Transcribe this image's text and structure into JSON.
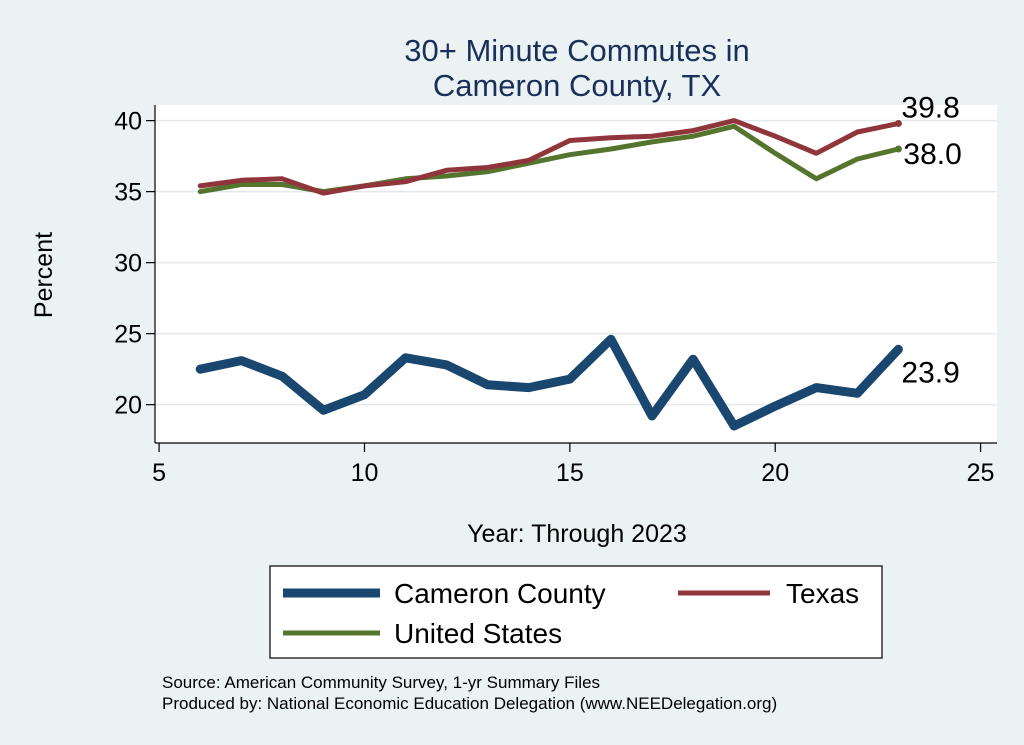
{
  "chart_data": {
    "type": "line",
    "title_lines": [
      "30+ Minute Commutes in",
      "Cameron County, TX"
    ],
    "xlabel": "Year: Through 2023",
    "ylabel": "Percent",
    "xlim": [
      4.9,
      25.4
    ],
    "ylim": [
      17.3,
      41.1
    ],
    "xticks": [
      5,
      10,
      15,
      20,
      25
    ],
    "yticks": [
      20,
      25,
      30,
      35,
      40
    ],
    "grid": true,
    "x": [
      6,
      7,
      8,
      9,
      10,
      11,
      12,
      13,
      14,
      15,
      16,
      17,
      18,
      19,
      20,
      21,
      22,
      23
    ],
    "series": [
      {
        "name": "Cameron County",
        "color": "#1a476f",
        "values": [
          22.5,
          23.1,
          22.0,
          19.6,
          20.7,
          23.3,
          22.8,
          21.4,
          21.2,
          21.8,
          24.6,
          19.2,
          23.2,
          18.5,
          19.9,
          21.2,
          20.8,
          23.9
        ],
        "end_label": "23.9"
      },
      {
        "name": "Texas",
        "color": "#90353b",
        "values": [
          35.4,
          35.8,
          35.9,
          34.9,
          35.4,
          35.7,
          36.5,
          36.7,
          37.2,
          38.6,
          38.8,
          38.9,
          39.3,
          40.0,
          38.9,
          37.7,
          39.2,
          39.8
        ],
        "end_label": "39.8"
      },
      {
        "name": "United States",
        "color": "#55752f",
        "values": [
          35.0,
          35.5,
          35.5,
          35.0,
          35.4,
          35.9,
          36.1,
          36.4,
          37.0,
          37.6,
          38.0,
          38.5,
          38.9,
          39.6,
          37.7,
          35.9,
          37.3,
          38.0
        ],
        "end_label": "38.0"
      }
    ],
    "legend": {
      "placement": "bottom",
      "items": [
        "Cameron County",
        "Texas",
        "United States"
      ]
    },
    "notes": [
      "Source: American Community Survey, 1-yr Summary Files",
      "Produced by: National Economic Education Delegation (www.NEEDelegation.org)"
    ]
  }
}
